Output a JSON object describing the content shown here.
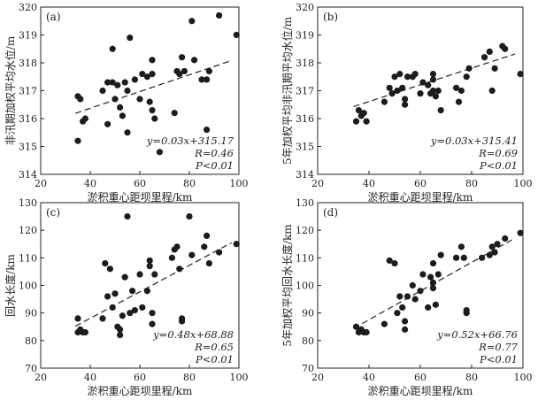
{
  "chart_data": [
    {
      "type": "scatter",
      "label": "(a)",
      "xlabel": "淤积重心距坝里程/km",
      "ylabel": "非汛期加权平均水位/m",
      "xlim": [
        20,
        100
      ],
      "ylim": [
        314,
        320
      ],
      "xticks": [
        20,
        40,
        60,
        80,
        100
      ],
      "yticks": [
        314,
        315,
        316,
        317,
        318,
        319,
        320
      ],
      "points": [
        {
          "x": 35,
          "y": 316.8
        },
        {
          "x": 35,
          "y": 315.2
        },
        {
          "x": 36,
          "y": 316.7
        },
        {
          "x": 37,
          "y": 315.9
        },
        {
          "x": 38,
          "y": 316.0
        },
        {
          "x": 45,
          "y": 317.0
        },
        {
          "x": 47,
          "y": 317.3
        },
        {
          "x": 47,
          "y": 315.8
        },
        {
          "x": 49,
          "y": 317.3
        },
        {
          "x": 49,
          "y": 318.5
        },
        {
          "x": 50,
          "y": 316.7
        },
        {
          "x": 51,
          "y": 317.2
        },
        {
          "x": 52,
          "y": 316.4
        },
        {
          "x": 53,
          "y": 316.1
        },
        {
          "x": 54,
          "y": 317.3
        },
        {
          "x": 55,
          "y": 317.0
        },
        {
          "x": 55,
          "y": 315.5
        },
        {
          "x": 56,
          "y": 318.9
        },
        {
          "x": 58,
          "y": 317.4
        },
        {
          "x": 60,
          "y": 316.7
        },
        {
          "x": 61,
          "y": 317.6
        },
        {
          "x": 63,
          "y": 317.5
        },
        {
          "x": 64,
          "y": 316.6
        },
        {
          "x": 65,
          "y": 318.1
        },
        {
          "x": 65,
          "y": 317.6
        },
        {
          "x": 65,
          "y": 316.3
        },
        {
          "x": 66,
          "y": 316.0
        },
        {
          "x": 68,
          "y": 314.8
        },
        {
          "x": 74,
          "y": 316.2
        },
        {
          "x": 75,
          "y": 317.7
        },
        {
          "x": 76,
          "y": 317.6
        },
        {
          "x": 77,
          "y": 318.2
        },
        {
          "x": 78,
          "y": 317.7
        },
        {
          "x": 81,
          "y": 319.5
        },
        {
          "x": 82,
          "y": 318.1
        },
        {
          "x": 85,
          "y": 317.4
        },
        {
          "x": 87,
          "y": 317.4
        },
        {
          "x": 88,
          "y": 317.7
        },
        {
          "x": 92,
          "y": 319.7
        },
        {
          "x": 99,
          "y": 319.0
        },
        {
          "x": 87,
          "y": 315.6
        }
      ],
      "fit": {
        "slope": 0.03,
        "intercept": 315.17,
        "equation": "y=0.03x+315.17",
        "R": "R=0.46",
        "P": "P<0.01"
      }
    },
    {
      "type": "scatter",
      "label": "(b)",
      "xlabel": "淤积重心距坝里程/km",
      "ylabel": "5年加权平均非汛期平均水位/m",
      "xlim": [
        20,
        100
      ],
      "ylim": [
        314,
        320
      ],
      "xticks": [
        20,
        40,
        60,
        80,
        100
      ],
      "yticks": [
        314,
        315,
        316,
        317,
        318,
        319,
        320
      ],
      "points": [
        {
          "x": 35,
          "y": 315.9
        },
        {
          "x": 36,
          "y": 316.3
        },
        {
          "x": 37,
          "y": 316.1
        },
        {
          "x": 38,
          "y": 316.2
        },
        {
          "x": 39,
          "y": 315.9
        },
        {
          "x": 46,
          "y": 316.6
        },
        {
          "x": 48,
          "y": 317.1
        },
        {
          "x": 49,
          "y": 316.9
        },
        {
          "x": 50,
          "y": 317.5
        },
        {
          "x": 51,
          "y": 317.0
        },
        {
          "x": 52,
          "y": 317.6
        },
        {
          "x": 53,
          "y": 317.1
        },
        {
          "x": 54,
          "y": 316.7
        },
        {
          "x": 54,
          "y": 316.5
        },
        {
          "x": 55,
          "y": 317.5
        },
        {
          "x": 57,
          "y": 317.5
        },
        {
          "x": 58,
          "y": 317.6
        },
        {
          "x": 60,
          "y": 316.9
        },
        {
          "x": 61,
          "y": 317.3
        },
        {
          "x": 63,
          "y": 317.2
        },
        {
          "x": 64,
          "y": 316.9
        },
        {
          "x": 65,
          "y": 317.6
        },
        {
          "x": 65,
          "y": 317.4
        },
        {
          "x": 65,
          "y": 317.0
        },
        {
          "x": 66,
          "y": 316.8
        },
        {
          "x": 67,
          "y": 317.0
        },
        {
          "x": 68,
          "y": 316.3
        },
        {
          "x": 74,
          "y": 317.1
        },
        {
          "x": 75,
          "y": 316.6
        },
        {
          "x": 76,
          "y": 317.0
        },
        {
          "x": 78,
          "y": 317.5
        },
        {
          "x": 79,
          "y": 317.8
        },
        {
          "x": 85,
          "y": 318.2
        },
        {
          "x": 87,
          "y": 318.4
        },
        {
          "x": 88,
          "y": 317.0
        },
        {
          "x": 89,
          "y": 317.8
        },
        {
          "x": 92,
          "y": 318.6
        },
        {
          "x": 93,
          "y": 318.5
        },
        {
          "x": 99,
          "y": 317.6
        }
      ],
      "fit": {
        "slope": 0.03,
        "intercept": 315.41,
        "equation": "y=0.03x+315.41",
        "R": "R=0.69",
        "P": "P<0.01"
      }
    },
    {
      "type": "scatter",
      "label": "(c)",
      "xlabel": "淤积重心距坝里程/km",
      "ylabel": "回水长度/km",
      "xlim": [
        20,
        100
      ],
      "ylim": [
        70,
        130
      ],
      "xticks": [
        20,
        40,
        60,
        80,
        100
      ],
      "yticks": [
        70,
        80,
        90,
        100,
        110,
        120,
        130
      ],
      "points": [
        {
          "x": 35,
          "y": 88
        },
        {
          "x": 35,
          "y": 83
        },
        {
          "x": 36,
          "y": 84
        },
        {
          "x": 37,
          "y": 83
        },
        {
          "x": 38,
          "y": 83
        },
        {
          "x": 45,
          "y": 88
        },
        {
          "x": 46,
          "y": 108
        },
        {
          "x": 47,
          "y": 96
        },
        {
          "x": 48,
          "y": 106
        },
        {
          "x": 49,
          "y": 92
        },
        {
          "x": 50,
          "y": 97
        },
        {
          "x": 51,
          "y": 85
        },
        {
          "x": 52,
          "y": 82
        },
        {
          "x": 52,
          "y": 84
        },
        {
          "x": 53,
          "y": 89
        },
        {
          "x": 54,
          "y": 103
        },
        {
          "x": 55,
          "y": 125
        },
        {
          "x": 56,
          "y": 90
        },
        {
          "x": 57,
          "y": 98
        },
        {
          "x": 58,
          "y": 91
        },
        {
          "x": 60,
          "y": 104
        },
        {
          "x": 61,
          "y": 92
        },
        {
          "x": 63,
          "y": 98
        },
        {
          "x": 64,
          "y": 109
        },
        {
          "x": 64,
          "y": 107
        },
        {
          "x": 65,
          "y": 90
        },
        {
          "x": 65,
          "y": 86
        },
        {
          "x": 66,
          "y": 104
        },
        {
          "x": 73,
          "y": 110
        },
        {
          "x": 74,
          "y": 113
        },
        {
          "x": 75,
          "y": 114
        },
        {
          "x": 76,
          "y": 106
        },
        {
          "x": 77,
          "y": 88
        },
        {
          "x": 77,
          "y": 87
        },
        {
          "x": 80,
          "y": 125
        },
        {
          "x": 81,
          "y": 111
        },
        {
          "x": 86,
          "y": 114
        },
        {
          "x": 87,
          "y": 118
        },
        {
          "x": 88,
          "y": 108
        },
        {
          "x": 92,
          "y": 112
        },
        {
          "x": 99,
          "y": 115
        }
      ],
      "fit": {
        "slope": 0.48,
        "intercept": 68.88,
        "equation": "y=0.48x+68.88",
        "R": "R=0.65",
        "P": "P<0.01"
      }
    },
    {
      "type": "scatter",
      "label": "(d)",
      "xlabel": "淤积重心距坝里程/km",
      "ylabel": "5年加权平均回水长度/km",
      "xlim": [
        20,
        100
      ],
      "ylim": [
        70,
        130
      ],
      "xticks": [
        20,
        40,
        60,
        80,
        100
      ],
      "yticks": [
        70,
        80,
        90,
        100,
        110,
        120,
        130
      ],
      "points": [
        {
          "x": 35,
          "y": 85
        },
        {
          "x": 36,
          "y": 83
        },
        {
          "x": 37,
          "y": 84
        },
        {
          "x": 38,
          "y": 83
        },
        {
          "x": 39,
          "y": 83
        },
        {
          "x": 46,
          "y": 86
        },
        {
          "x": 48,
          "y": 109
        },
        {
          "x": 50,
          "y": 108
        },
        {
          "x": 51,
          "y": 90
        },
        {
          "x": 52,
          "y": 96
        },
        {
          "x": 53,
          "y": 92
        },
        {
          "x": 54,
          "y": 87
        },
        {
          "x": 54,
          "y": 84
        },
        {
          "x": 55,
          "y": 96
        },
        {
          "x": 57,
          "y": 100
        },
        {
          "x": 58,
          "y": 95
        },
        {
          "x": 60,
          "y": 98
        },
        {
          "x": 61,
          "y": 104
        },
        {
          "x": 63,
          "y": 92
        },
        {
          "x": 64,
          "y": 103
        },
        {
          "x": 65,
          "y": 108
        },
        {
          "x": 65,
          "y": 101
        },
        {
          "x": 65,
          "y": 99
        },
        {
          "x": 66,
          "y": 93
        },
        {
          "x": 67,
          "y": 104
        },
        {
          "x": 68,
          "y": 111
        },
        {
          "x": 74,
          "y": 110
        },
        {
          "x": 76,
          "y": 114
        },
        {
          "x": 77,
          "y": 110
        },
        {
          "x": 78,
          "y": 91
        },
        {
          "x": 78,
          "y": 90
        },
        {
          "x": 84,
          "y": 110
        },
        {
          "x": 87,
          "y": 111
        },
        {
          "x": 88,
          "y": 114
        },
        {
          "x": 89,
          "y": 112
        },
        {
          "x": 90,
          "y": 115
        },
        {
          "x": 93,
          "y": 117
        },
        {
          "x": 99,
          "y": 119
        }
      ],
      "fit": {
        "slope": 0.52,
        "intercept": 66.76,
        "equation": "y=0.52x+66.76",
        "R": "R=0.77",
        "P": "P<0.01"
      }
    }
  ]
}
